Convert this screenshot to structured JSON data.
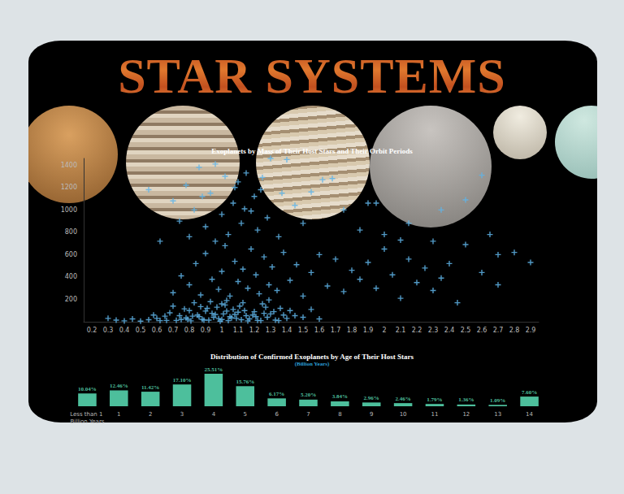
{
  "header": {
    "title": "STAR SYSTEMS"
  },
  "chart_data": [
    {
      "type": "scatter",
      "title": "Exoplanets by Mass of Their Host Stars and Their Orbit Periods",
      "color": "#5fb4e8",
      "marker": "plus",
      "grid": false,
      "xlim": [
        0.15,
        2.95
      ],
      "ylim": [
        0,
        1460
      ],
      "xticks": [
        0.2,
        0.3,
        0.4,
        0.5,
        0.6,
        0.7,
        0.8,
        0.9,
        1.0,
        1.1,
        1.2,
        1.3,
        1.4,
        1.5,
        1.6,
        1.7,
        1.8,
        1.9,
        2.0,
        2.1,
        2.2,
        2.3,
        2.4,
        2.5,
        2.6,
        2.7,
        2.8,
        2.9
      ],
      "yticks": [
        200,
        400,
        600,
        800,
        1000,
        1200,
        1400
      ],
      "x": [
        0.72,
        0.78,
        0.81,
        0.85,
        0.88,
        0.9,
        0.92,
        0.95,
        0.97,
        0.99,
        1.0,
        1.01,
        1.02,
        1.04,
        1.05,
        1.07,
        1.09,
        1.1,
        1.12,
        1.15,
        1.17,
        1.2,
        1.22,
        1.25,
        1.28,
        1.3,
        1.33,
        1.36,
        1.4,
        1.45,
        0.5,
        0.55,
        0.6,
        0.62,
        0.65,
        0.68,
        0.7,
        0.75,
        0.8,
        0.83,
        0.3,
        0.35,
        0.4,
        0.45,
        0.58,
        0.66,
        0.86,
        0.93,
        0.96,
        1.03,
        1.06,
        1.11,
        1.14,
        1.19,
        1.24,
        1.27,
        1.32,
        1.5,
        1.55,
        1.6,
        0.7,
        0.75,
        0.8,
        0.84,
        0.87,
        0.9,
        0.94,
        0.98,
        1.0,
        1.02,
        1.05,
        1.08,
        1.1,
        1.13,
        1.16,
        1.18,
        1.21,
        1.23,
        1.26,
        1.29,
        1.31,
        1.34,
        1.38,
        1.42,
        1.46,
        1.5,
        1.55,
        1.6,
        1.65,
        1.7,
        1.75,
        1.8,
        1.85,
        1.9,
        1.95,
        2.0,
        2.05,
        2.1,
        2.15,
        2.2,
        2.25,
        2.3,
        2.35,
        2.4,
        2.45,
        2.5,
        2.6,
        2.7,
        2.8,
        2.9,
        0.55,
        0.62,
        0.7,
        0.74,
        0.78,
        0.8,
        0.83,
        0.86,
        0.9,
        0.93,
        0.96,
        1.0,
        1.02,
        1.04,
        1.07,
        1.1,
        1.12,
        1.15,
        1.18,
        1.2,
        1.22,
        1.25,
        1.28,
        1.3,
        1.35,
        1.4,
        1.45,
        1.5,
        1.55,
        1.62,
        1.68,
        1.75,
        1.85,
        1.95,
        2.0,
        2.1,
        2.15,
        2.3,
        2.35,
        2.5,
        2.6,
        2.65,
        2.7,
        1.9,
        1.08,
        0.88,
        0.96,
        1.14,
        1.24,
        1.37,
        0.82,
        0.89,
        0.91,
        0.94,
        0.98,
        1.0,
        1.03,
        1.08,
        1.13,
        1.16,
        1.21,
        1.26,
        1.29,
        1.35,
        1.38,
        1.42,
        0.74,
        0.77,
        0.79,
        0.87
      ],
      "values": [
        12,
        35,
        8,
        60,
        22,
        95,
        15,
        40,
        130,
        5,
        20,
        70,
        150,
        10,
        45,
        110,
        30,
        85,
        18,
        55,
        25,
        90,
        12,
        160,
        40,
        70,
        15,
        120,
        30,
        55,
        5,
        18,
        30,
        10,
        50,
        80,
        140,
        20,
        100,
        170,
        30,
        15,
        8,
        25,
        60,
        12,
        45,
        180,
        65,
        190,
        35,
        140,
        100,
        60,
        10,
        130,
        90,
        40,
        110,
        25,
        260,
        410,
        330,
        520,
        240,
        610,
        380,
        290,
        450,
        680,
        230,
        540,
        360,
        470,
        300,
        650,
        420,
        250,
        580,
        330,
        490,
        280,
        620,
        370,
        510,
        230,
        440,
        600,
        320,
        560,
        270,
        460,
        380,
        530,
        300,
        650,
        420,
        210,
        560,
        350,
        480,
        280,
        390,
        520,
        170,
        690,
        440,
        330,
        620,
        530,
        1180,
        720,
        1080,
        900,
        1220,
        760,
        1000,
        1380,
        850,
        1150,
        1410,
        960,
        1300,
        780,
        1060,
        1250,
        880,
        1330,
        990,
        1120,
        820,
        1290,
        930,
        1460,
        760,
        1450,
        1040,
        880,
        1160,
        1270,
        1280,
        1000,
        820,
        1060,
        780,
        730,
        880,
        720,
        1000,
        1090,
        1310,
        780,
        600,
        1060,
        1200,
        1120,
        720,
        1010,
        1180,
        1150,
        50,
        15,
        120,
        75,
        28,
        160,
        95,
        65,
        170,
        8,
        45,
        75,
        195,
        10,
        60,
        100,
        55,
        115,
        22,
        135
      ]
    },
    {
      "type": "bar",
      "title": "Distribution of Confirmed Exoplanets by Age of Their Host Stars",
      "subtitle": "(Billion Years)",
      "color": "#4dbf9c",
      "data_labels": true,
      "tick_labels": "x",
      "grid": false,
      "categories": [
        "Less than 1 Billion Years",
        "1",
        "2",
        "3",
        "4",
        "5",
        "6",
        "7",
        "8",
        "9",
        "10",
        "11",
        "12",
        "13",
        "14"
      ],
      "values": [
        10.04,
        12.46,
        11.42,
        17.1,
        25.51,
        15.76,
        6.17,
        5.2,
        3.84,
        2.96,
        2.46,
        1.79,
        1.36,
        1.09,
        7.6
      ],
      "value_labels": [
        "10.04%",
        "12.46%",
        "11.42%",
        "17.10%",
        "25.51%",
        "15.76%",
        "6.17%",
        "5.20%",
        "3.84%",
        "2.96%",
        "2.46%",
        "1.79%",
        "1.36%",
        "1.09%",
        "7.60%"
      ]
    }
  ]
}
